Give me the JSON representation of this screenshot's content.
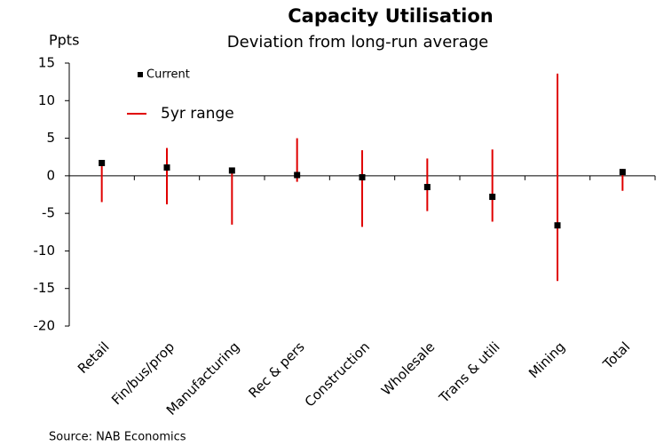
{
  "chart_data": {
    "type": "range",
    "title": "Capacity Utilisation",
    "subtitle": "Deviation from long-run average",
    "y_label": "Ppts",
    "source": "Source: NAB Economics",
    "categories": [
      "Retail",
      "Fin/bus/prop",
      "Manufacturing",
      "Rec & pers",
      "Construction",
      "Wholesale",
      "Trans & utili",
      "Mining",
      "Total"
    ],
    "series": [
      {
        "name": "Current",
        "color": "#000000",
        "values": [
          1.7,
          1.1,
          0.7,
          0.1,
          -0.2,
          -1.5,
          -2.8,
          -6.6,
          0.5
        ]
      },
      {
        "name": "5yr range",
        "color": "#e00000",
        "low": [
          -3.5,
          -3.8,
          -6.5,
          -0.8,
          -6.8,
          -4.7,
          -6.1,
          -14.0,
          -2.0
        ],
        "high": [
          2.0,
          3.7,
          0.8,
          5.0,
          3.4,
          2.3,
          3.5,
          13.6,
          0.9
        ]
      }
    ],
    "ylim": [
      -20,
      15
    ],
    "yticks": [
      -20,
      -15,
      -10,
      -5,
      0,
      5,
      10,
      15
    ]
  }
}
